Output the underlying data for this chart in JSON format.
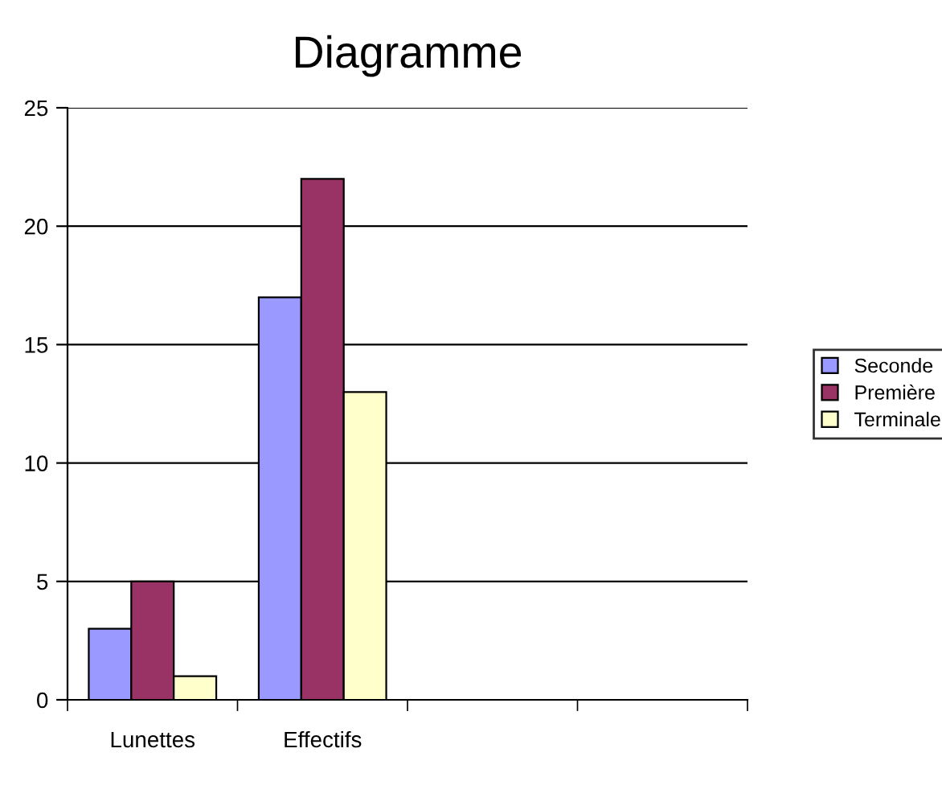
{
  "chart_data": {
    "type": "bar",
    "title": "Diagramme",
    "categories": [
      "Lunettes",
      "Effectifs",
      null,
      null
    ],
    "series": [
      {
        "name": "Seconde",
        "color": "#9999ff",
        "values": [
          3,
          17,
          null,
          null
        ]
      },
      {
        "name": "Première",
        "color": "#993366",
        "values": [
          5,
          22,
          null,
          null
        ]
      },
      {
        "name": "Terminale",
        "color": "#ffffcc",
        "values": [
          1,
          13,
          null,
          null
        ]
      }
    ],
    "ylim": [
      0,
      25
    ],
    "yticks": [
      0,
      5,
      10,
      15,
      20,
      25
    ],
    "grid": "y",
    "legend": "right"
  }
}
